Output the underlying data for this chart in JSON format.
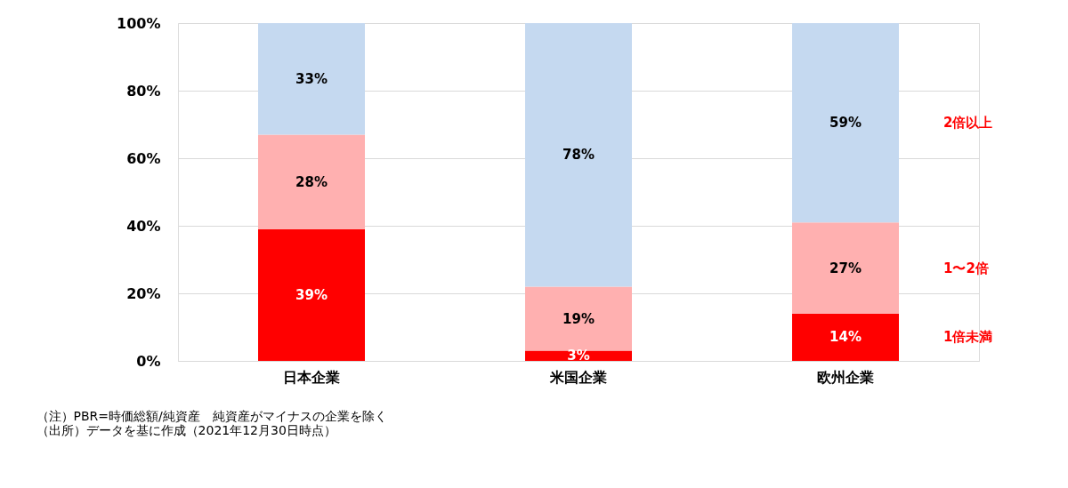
{
  "chart_data": {
    "type": "bar",
    "stacked": true,
    "categories": [
      "日本企業",
      "米国企業",
      "欧州企業"
    ],
    "series": [
      {
        "name": "1倍未満",
        "color": "#ff0000",
        "values": [
          39,
          3,
          14
        ],
        "value_labels": [
          "39%",
          "3%",
          "14%"
        ]
      },
      {
        "name": "1〜2倍",
        "color": "#ffb0b0",
        "values": [
          28,
          19,
          27
        ],
        "value_labels": [
          "28%",
          "19%",
          "27%"
        ]
      },
      {
        "name": "2倍以上",
        "color": "#c5d9f0",
        "values": [
          33,
          78,
          59
        ],
        "value_labels": [
          "33%",
          "78%",
          "59%"
        ]
      }
    ],
    "ylim": [
      0,
      100
    ],
    "yticks": [
      {
        "value": 0,
        "label": "0%"
      },
      {
        "value": 20,
        "label": "20%"
      },
      {
        "value": 40,
        "label": "40%"
      },
      {
        "value": 60,
        "label": "60%"
      },
      {
        "value": 80,
        "label": "80%"
      },
      {
        "value": 100,
        "label": "100%"
      }
    ],
    "grid": "y",
    "annotations": [
      "（注）PBR=時価総額/純資産　純資産がマイナスの企業を除く",
      "（出所）データを基に作成（2021年12月30日時点）"
    ]
  }
}
